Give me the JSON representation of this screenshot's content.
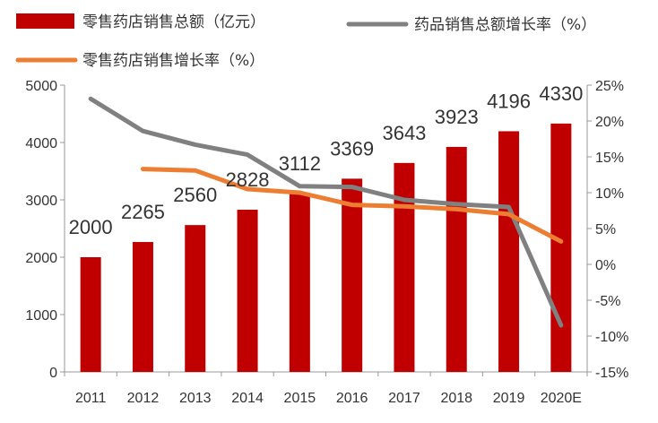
{
  "chart_data": {
    "type": "bar",
    "categories": [
      "2011",
      "2012",
      "2013",
      "2014",
      "2015",
      "2016",
      "2017",
      "2018",
      "2019",
      "2020E"
    ],
    "ylim_left": [
      0,
      5000
    ],
    "yticks_left": [
      "0",
      "1000",
      "2000",
      "3000",
      "4000",
      "5000"
    ],
    "ylim_right": [
      -15,
      25
    ],
    "yticks_right": [
      "-15%",
      "-10%",
      "-5%",
      "0%",
      "5%",
      "10%",
      "15%",
      "20%",
      "25%"
    ],
    "grid": false,
    "legend_position": "top",
    "series": [
      {
        "name": "零售药店销售总额（亿元）",
        "type": "bar",
        "axis": "left",
        "color": "#c00000",
        "values": [
          2000,
          2265,
          2560,
          2828,
          3112,
          3369,
          3643,
          3923,
          4196,
          4330
        ],
        "labels": [
          "2000",
          "2265",
          "2560",
          "2828",
          "3112",
          "3369",
          "3643",
          "3923",
          "4196",
          "4330"
        ]
      },
      {
        "name": "药品销售总额增长率（%）",
        "type": "line",
        "axis": "right",
        "color": "#808080",
        "values": [
          23.1,
          18.6,
          16.7,
          15.3,
          10.9,
          10.8,
          9.0,
          8.4,
          8.0,
          -8.5
        ]
      },
      {
        "name": "零售药店销售增长率（%）",
        "type": "line",
        "axis": "right",
        "color": "#ed7d31",
        "values": [
          null,
          13.3,
          13.1,
          10.5,
          10.0,
          8.3,
          8.1,
          7.7,
          7.0,
          3.2
        ]
      }
    ]
  }
}
